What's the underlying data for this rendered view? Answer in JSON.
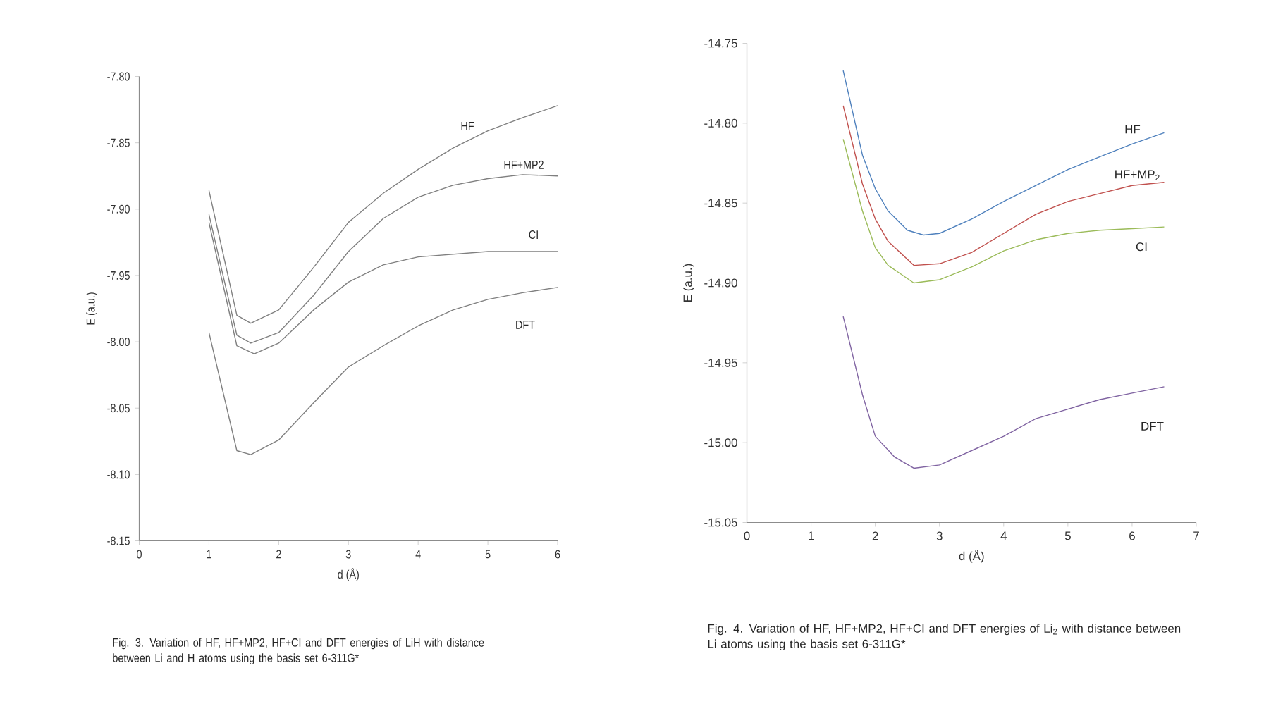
{
  "chart_data": [
    {
      "type": "line",
      "xlabel": "d (Å)",
      "ylabel": "E (a.u.)",
      "xlim": [
        0,
        6
      ],
      "xticks": [
        0,
        1,
        2,
        3,
        4,
        5,
        6
      ],
      "ylim": [
        -8.15,
        -7.8
      ],
      "yticks": [
        {
          "value": -8.15,
          "label": "-8.15"
        },
        {
          "value": -8.1,
          "label": "-8.10"
        },
        {
          "value": -8.05,
          "label": "-8.05"
        },
        {
          "value": -8.0,
          "label": "-8.00"
        },
        {
          "value": -7.95,
          "label": "-7.95"
        },
        {
          "value": -7.9,
          "label": "-7.90"
        },
        {
          "value": -7.85,
          "label": "-7.85"
        },
        {
          "value": -7.8,
          "label": "-7.80"
        }
      ],
      "grid": false,
      "legend": false,
      "annotations": [
        "Fig. 3. Variation of HF, HF+MP2, HF+CI and DFT energies of LiH with distance between Li and H atoms using the basis set 6-311G*"
      ],
      "series": [
        {
          "name": "HF",
          "color": "#7f7f7f",
          "x": [
            1,
            1.4,
            1.6,
            2,
            2.5,
            3,
            3.5,
            4,
            4.5,
            5,
            5.5,
            6
          ],
          "values": [
            -7.886,
            -7.98,
            -7.986,
            -7.976,
            -7.944,
            -7.91,
            -7.888,
            -7.87,
            -7.854,
            -7.841,
            -7.831,
            -7.822
          ]
        },
        {
          "name": "HF+MP2",
          "color": "#7f7f7f",
          "x": [
            1,
            1.4,
            1.6,
            2,
            2.5,
            3,
            3.5,
            4,
            4.5,
            5,
            5.5,
            6
          ],
          "values": [
            -7.904,
            -7.995,
            -8.001,
            -7.993,
            -7.965,
            -7.932,
            -7.907,
            -7.891,
            -7.882,
            -7.877,
            -7.874,
            -7.875
          ]
        },
        {
          "name": "CI",
          "color": "#7f7f7f",
          "x": [
            1,
            1.4,
            1.65,
            2,
            2.5,
            3,
            3.5,
            4,
            4.5,
            5,
            6
          ],
          "values": [
            -7.91,
            -8.003,
            -8.009,
            -8.001,
            -7.976,
            -7.955,
            -7.942,
            -7.936,
            -7.934,
            -7.932,
            -7.932
          ]
        },
        {
          "name": "DFT",
          "color": "#7f7f7f",
          "x": [
            1,
            1.4,
            1.6,
            2,
            2.5,
            3,
            3.5,
            4,
            4.5,
            5,
            5.5,
            6
          ],
          "values": [
            -7.993,
            -8.082,
            -8.085,
            -8.074,
            -8.046,
            -8.019,
            -8.003,
            -7.988,
            -7.976,
            -7.968,
            -7.963,
            -7.959
          ]
        }
      ]
    },
    {
      "type": "line",
      "xlabel": "d (Å)",
      "ylabel": "E (a.u.)",
      "xlim": [
        0,
        7
      ],
      "xticks": [
        0,
        1,
        2,
        3,
        4,
        5,
        6,
        7
      ],
      "ylim": [
        -15.05,
        -14.75
      ],
      "yticks": [
        {
          "value": -15.05,
          "label": "-15.05"
        },
        {
          "value": -15.0,
          "label": "-15.00"
        },
        {
          "value": -14.95,
          "label": "-14.95"
        },
        {
          "value": -14.9,
          "label": "-14.90"
        },
        {
          "value": -14.85,
          "label": "-14.85"
        },
        {
          "value": -14.8,
          "label": "-14.80"
        },
        {
          "value": -14.75,
          "label": "-14.75"
        }
      ],
      "grid": false,
      "legend": false,
      "annotations": [
        "Fig. 4. Variation of HF, HF+MP2, HF+CI and DFT energies of Li$_{2}$ with distance between Li atoms using the basis set 6-311G*"
      ],
      "series": [
        {
          "name": "HF",
          "color": "#4f81bd",
          "x": [
            1.5,
            1.8,
            2,
            2.2,
            2.5,
            2.75,
            3,
            3.5,
            4,
            4.5,
            5,
            5.5,
            6,
            6.5
          ],
          "values": [
            -14.767,
            -14.82,
            -14.841,
            -14.855,
            -14.867,
            -14.87,
            -14.869,
            -14.86,
            -14.849,
            -14.839,
            -14.829,
            -14.821,
            -14.813,
            -14.806
          ]
        },
        {
          "name": "HF+MP$_{2}$",
          "color": "#c0504d",
          "x": [
            1.5,
            1.8,
            2,
            2.2,
            2.6,
            3,
            3.5,
            4,
            4.5,
            5,
            5.5,
            6,
            6.5
          ],
          "values": [
            -14.789,
            -14.838,
            -14.86,
            -14.874,
            -14.889,
            -14.888,
            -14.881,
            -14.869,
            -14.857,
            -14.849,
            -14.844,
            -14.839,
            -14.837
          ]
        },
        {
          "name": "CI",
          "color": "#9bbb59",
          "x": [
            1.5,
            1.8,
            2,
            2.2,
            2.6,
            3,
            3.5,
            4,
            4.5,
            5,
            5.5,
            6,
            6.5
          ],
          "values": [
            -14.81,
            -14.855,
            -14.878,
            -14.889,
            -14.9,
            -14.898,
            -14.89,
            -14.88,
            -14.873,
            -14.869,
            -14.867,
            -14.866,
            -14.865
          ]
        },
        {
          "name": "DFT",
          "color": "#8064a2",
          "x": [
            1.5,
            1.8,
            2,
            2.3,
            2.6,
            3,
            3.5,
            4,
            4.5,
            5,
            5.5,
            6,
            6.5
          ],
          "values": [
            -14.921,
            -14.97,
            -14.996,
            -15.009,
            -15.016,
            -15.014,
            -15.005,
            -14.996,
            -14.985,
            -14.979,
            -14.973,
            -14.969,
            -14.965
          ]
        }
      ]
    }
  ]
}
